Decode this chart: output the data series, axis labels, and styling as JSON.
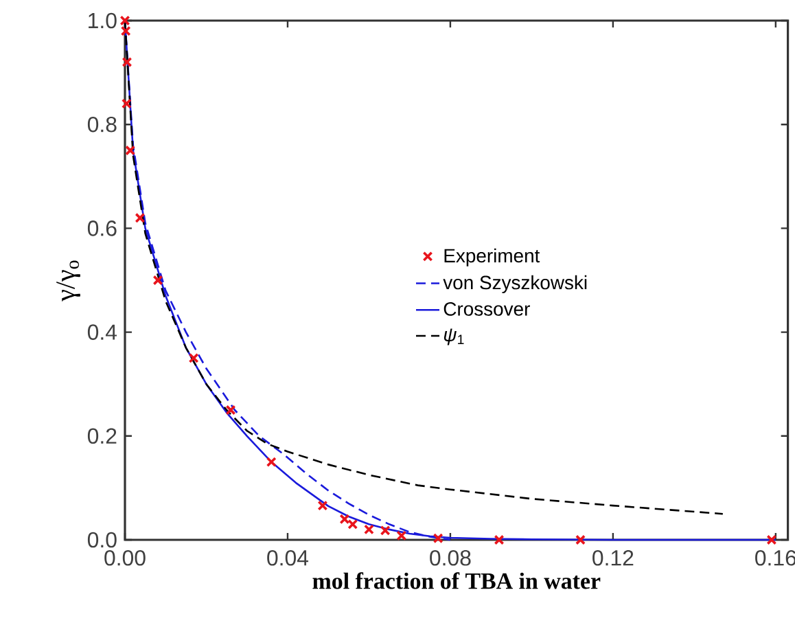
{
  "chart_data": {
    "type": "line",
    "xlabel": "mol fraction of TBA in water",
    "ylabel": "γ/γ$_{o}$",
    "xlim": [
      0,
      0.163
    ],
    "ylim": [
      0,
      1.0
    ],
    "xticks": [
      {
        "value": 0,
        "label": "0.00"
      },
      {
        "value": 0.04,
        "label": "0.04"
      },
      {
        "value": 0.08,
        "label": "0.08"
      },
      {
        "value": 0.12,
        "label": "0.12"
      },
      {
        "value": 0.16,
        "label": "0.16"
      }
    ],
    "yticks": [
      {
        "value": 0,
        "label": "0.0"
      },
      {
        "value": 0.2,
        "label": "0.2"
      },
      {
        "value": 0.4,
        "label": "0.4"
      },
      {
        "value": 0.6,
        "label": "0.6"
      },
      {
        "value": 0.8,
        "label": "0.8"
      },
      {
        "value": 1.0,
        "label": "1.0"
      }
    ],
    "legend": "center",
    "grid": false,
    "series": [
      {
        "name": "Experiment",
        "type": "scatter",
        "marker": "cross",
        "color": "#e8141c",
        "x": [
          0,
          0.0002,
          0.0005,
          0.0004,
          0.0013,
          0.0037,
          0.0081,
          0.0169,
          0.026,
          0.036,
          0.0486,
          0.054,
          0.056,
          0.06,
          0.064,
          0.068,
          0.077,
          0.092,
          0.112,
          0.159
        ],
        "values": [
          1.0,
          0.98,
          0.92,
          0.84,
          0.75,
          0.62,
          0.5,
          0.35,
          0.25,
          0.15,
          0.066,
          0.04,
          0.03,
          0.02,
          0.018,
          0.008,
          0.003,
          0.0,
          0.0,
          0.0
        ]
      },
      {
        "name": "von Szyszkowski",
        "line_style": "dashed",
        "color": "#1a1adb",
        "x": [
          0,
          0.002,
          0.005,
          0.01,
          0.015,
          0.02,
          0.027,
          0.033,
          0.039,
          0.045,
          0.05,
          0.055,
          0.06,
          0.065,
          0.07,
          0.075,
          0.08
        ],
        "values": [
          1.0,
          0.76,
          0.61,
          0.48,
          0.4,
          0.33,
          0.25,
          0.2,
          0.165,
          0.125,
          0.095,
          0.07,
          0.048,
          0.03,
          0.015,
          0.006,
          0.0
        ]
      },
      {
        "name": "Crossover",
        "line_style": "solid",
        "color": "#1a1adb",
        "x": [
          0,
          0.002,
          0.005,
          0.01,
          0.015,
          0.02,
          0.025,
          0.03,
          0.036,
          0.042,
          0.05,
          0.055,
          0.06,
          0.065,
          0.07,
          0.075,
          0.08,
          0.09,
          0.1,
          0.12,
          0.16
        ],
        "values": [
          1.0,
          0.75,
          0.6,
          0.47,
          0.37,
          0.3,
          0.245,
          0.2,
          0.15,
          0.11,
          0.065,
          0.045,
          0.03,
          0.02,
          0.012,
          0.007,
          0.004,
          0.002,
          0.001,
          0.0,
          0.0
        ]
      },
      {
        "name": "*ψ*$_{1}$",
        "line_style": "dashed",
        "color": "#000000",
        "x": [
          0,
          0.002,
          0.005,
          0.01,
          0.015,
          0.02,
          0.025,
          0.03,
          0.035,
          0.04,
          0.05,
          0.06,
          0.072,
          0.08,
          0.1,
          0.12,
          0.147
        ],
        "values": [
          1.0,
          0.74,
          0.59,
          0.46,
          0.37,
          0.3,
          0.25,
          0.21,
          0.185,
          0.17,
          0.145,
          0.125,
          0.105,
          0.097,
          0.079,
          0.066,
          0.05
        ]
      }
    ]
  }
}
